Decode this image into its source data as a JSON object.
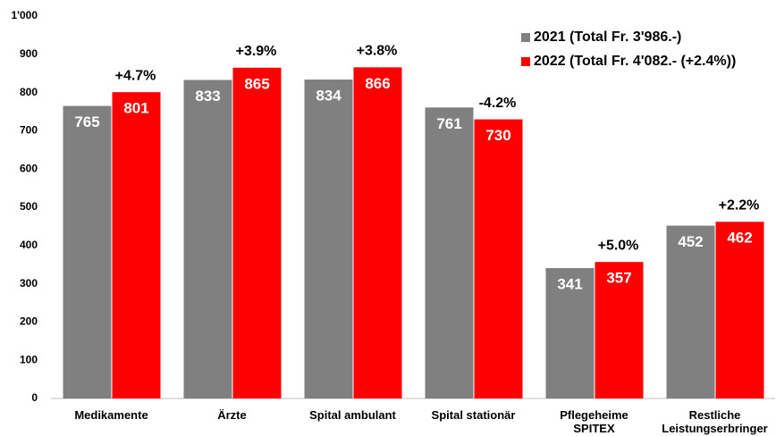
{
  "chart_data": {
    "type": "bar",
    "categories": [
      "Medikamente",
      "Ärzte",
      "Spital ambulant",
      "Spital stationär",
      "Pflegeheime\nSPITEX",
      "Restliche\nLeistungserbringer"
    ],
    "series": [
      {
        "name": "2021 (Total Fr. 3'986.-)",
        "color": "#808080",
        "values": [
          765,
          833,
          834,
          761,
          341,
          452
        ]
      },
      {
        "name": "2022 (Total Fr. 4'082.- (+2.4%))",
        "color": "#ff0000",
        "values": [
          801,
          865,
          866,
          730,
          357,
          462
        ]
      }
    ],
    "annotations": [
      "+4.7%",
      "+3.9%",
      "+3.8%",
      "-4.2%",
      "+5.0%",
      "+2.2%"
    ],
    "ylim": [
      0,
      1000
    ],
    "yticks": [
      0,
      100,
      200,
      300,
      400,
      500,
      600,
      700,
      800,
      900,
      {
        "value": 1000,
        "label": "1'000"
      }
    ],
    "grid": false,
    "legend": "top-right"
  }
}
